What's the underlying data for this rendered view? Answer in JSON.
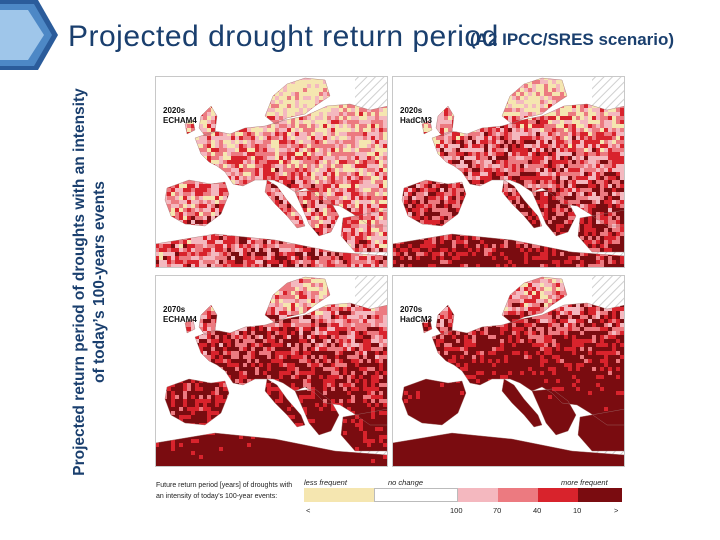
{
  "slide": {
    "title": "Projected drought return period",
    "subtitle": "(A2 IPCC/SRES scenario)",
    "side_label": "Projected return period of droughts with an intensity of today’s 100-years events"
  },
  "maps": [
    {
      "period": "2020s",
      "model": "ECHAM4"
    },
    {
      "period": "2020s",
      "model": "HadCM3"
    },
    {
      "period": "2070s",
      "model": "ECHAM4"
    },
    {
      "period": "2070s",
      "model": "HadCM3"
    }
  ],
  "legend": {
    "description": "Future return period [years] of droughts with an intensity of today's 100-year events:",
    "less_frequent": "less frequent",
    "no_change": "no change",
    "more_frequent": "more frequent",
    "ticks": [
      "<",
      "100",
      "70",
      "40",
      "10",
      ">"
    ]
  },
  "colors": {
    "title_blue": "#1a3f6e",
    "less_frequent": "#f5e6b0",
    "no_change": "#ffffff",
    "class_100_70": "#f4b8bf",
    "class_70_40": "#ec7a80",
    "class_40_10": "#d8232c",
    "class_lt10": "#7a0c10",
    "sea": "#ffffff",
    "nodata_hatch": "#d0d0d0"
  }
}
